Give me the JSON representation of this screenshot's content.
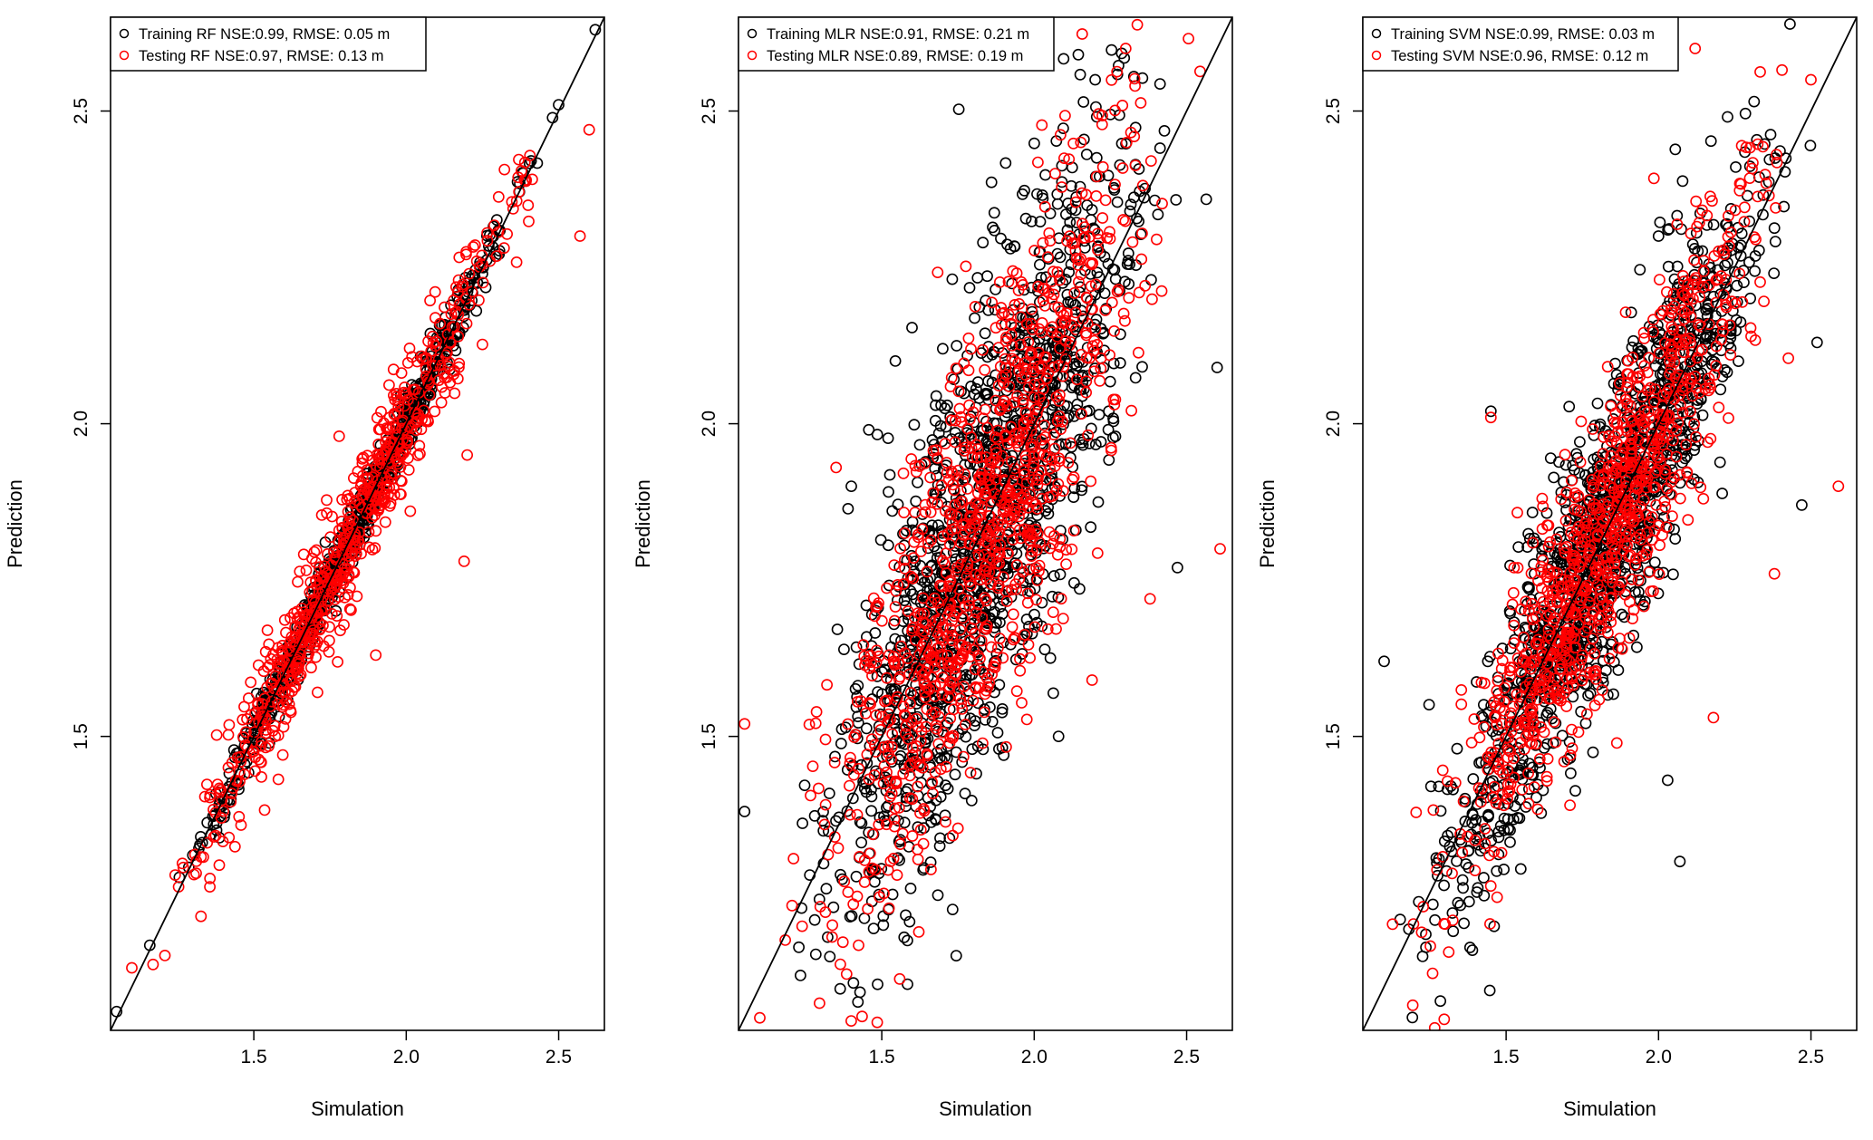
{
  "chart_data": [
    {
      "type": "scatter",
      "model": "RF",
      "xlabel": "Simulation",
      "ylabel": "Prediction",
      "xlim": [
        1.03,
        2.65
      ],
      "ylim": [
        1.03,
        2.65
      ],
      "x_ticks": [
        "1.5",
        "2.0",
        "2.5"
      ],
      "y_ticks": [
        "1.5",
        "2.0",
        "2.5"
      ],
      "reference_line": "y = x",
      "legend_position": "top-left",
      "series": [
        {
          "name": "Training RF NSE:0.99,  RMSE: 0.05 m",
          "color": "#000000",
          "marker": "open-circle",
          "spread": 0.022,
          "n": 750,
          "seed": 11,
          "sample_points": [
            [
              1.05,
              1.06
            ],
            [
              1.3,
              1.31
            ],
            [
              1.5,
              1.49
            ],
            [
              1.75,
              1.76
            ],
            [
              2.0,
              2.01
            ],
            [
              2.25,
              2.24
            ],
            [
              2.5,
              2.51
            ],
            [
              2.62,
              2.63
            ]
          ]
        },
        {
          "name": "Testing RF NSE:0.97,  RMSE: 0.13 m",
          "color": "#ff0000",
          "marker": "open-circle",
          "spread": 0.05,
          "n": 650,
          "seed": 12,
          "sample_points": [
            [
              1.1,
              1.13
            ],
            [
              1.57,
              1.5
            ],
            [
              1.78,
              1.98
            ],
            [
              1.9,
              1.63
            ],
            [
              2.19,
              1.78
            ],
            [
              2.2,
              1.95
            ],
            [
              2.57,
              2.3
            ],
            [
              2.6,
              2.47
            ]
          ]
        }
      ]
    },
    {
      "type": "scatter",
      "model": "MLR",
      "xlabel": "Simulation",
      "ylabel": "Prediction",
      "xlim": [
        1.03,
        2.65
      ],
      "ylim": [
        1.03,
        2.65
      ],
      "x_ticks": [
        "1.5",
        "2.0",
        "2.5"
      ],
      "y_ticks": [
        "1.5",
        "2.0",
        "2.5"
      ],
      "reference_line": "y = x",
      "legend_position": "top-left",
      "series": [
        {
          "name": "Training MLR NSE:0.91,  RMSE: 0.21 m",
          "color": "#000000",
          "marker": "open-circle",
          "spread": 0.18,
          "n": 1400,
          "seed": 21,
          "sample_points": [
            [
              1.05,
              1.38
            ],
            [
              1.4,
              1.9
            ],
            [
              1.7,
              2.12
            ],
            [
              1.9,
              1.47
            ],
            [
              2.08,
              1.5
            ],
            [
              2.2,
              2.55
            ],
            [
              2.47,
              1.77
            ],
            [
              2.6,
              2.09
            ]
          ]
        },
        {
          "name": "Testing MLR NSE:0.89,  RMSE: 0.19 m",
          "color": "#ff0000",
          "marker": "open-circle",
          "spread": 0.17,
          "n": 1000,
          "seed": 22,
          "sample_points": [
            [
              1.05,
              1.52
            ],
            [
              1.1,
              1.05
            ],
            [
              1.35,
              1.93
            ],
            [
              2.19,
              1.59
            ],
            [
              2.38,
              1.72
            ],
            [
              2.61,
              1.8
            ],
            [
              2.3,
              2.6
            ],
            [
              1.6,
              1.4
            ]
          ]
        }
      ]
    },
    {
      "type": "scatter",
      "model": "SVM",
      "xlabel": "Simulation",
      "ylabel": "Prediction",
      "xlim": [
        1.03,
        2.65
      ],
      "ylim": [
        1.03,
        2.65
      ],
      "x_ticks": [
        "1.5",
        "2.0",
        "2.5"
      ],
      "y_ticks": [
        "1.5",
        "2.0",
        "2.5"
      ],
      "reference_line": "y = x",
      "legend_position": "top-left",
      "series": [
        {
          "name": "Training SVM NSE:0.99,  RMSE: 0.03 m",
          "color": "#000000",
          "marker": "open-circle",
          "spread": 0.11,
          "n": 1300,
          "seed": 31,
          "sample_points": [
            [
              1.1,
              1.62
            ],
            [
              1.35,
              1.23
            ],
            [
              2.07,
              1.3
            ],
            [
              2.03,
              1.43
            ],
            [
              2.47,
              1.87
            ],
            [
              2.52,
              2.13
            ],
            [
              1.45,
              2.02
            ],
            [
              2.0,
              2.3
            ]
          ]
        },
        {
          "name": "Testing SVM NSE:0.96,  RMSE: 0.12 m",
          "color": "#ff0000",
          "marker": "open-circle",
          "spread": 0.11,
          "n": 900,
          "seed": 32,
          "sample_points": [
            [
              1.45,
              2.01
            ],
            [
              2.18,
              1.53
            ],
            [
              2.38,
              1.76
            ],
            [
              2.59,
              1.9
            ],
            [
              2.12,
              2.6
            ],
            [
              1.3,
              1.2
            ],
            [
              1.8,
              1.82
            ],
            [
              2.5,
              2.55
            ]
          ]
        }
      ]
    }
  ]
}
